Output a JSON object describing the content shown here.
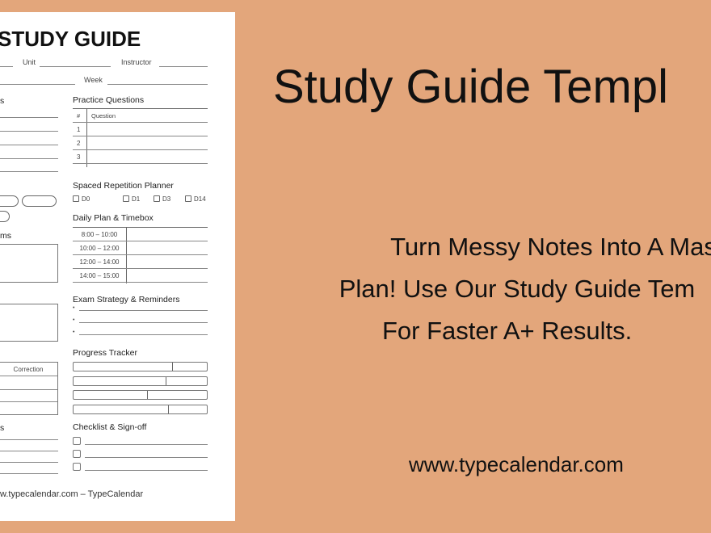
{
  "colors": {
    "background": "#E3A67B",
    "sheet": "#FFFFFF",
    "text": "#111111"
  },
  "sheet": {
    "title": "STUDY GUIDE",
    "unit_label": "Unit",
    "instructor_label": "Instructor",
    "week_label": "Week",
    "left_heading_1": "s",
    "left_heading_2": "ms",
    "correction_header": "Correction",
    "left_heading_3": "s",
    "practice": {
      "title": "Practice Questions",
      "col_num": "#",
      "col_question": "Question",
      "rows": [
        "1",
        "2",
        "3"
      ]
    },
    "spaced": {
      "title": "Spaced Repetition Planner",
      "options": [
        "D0",
        "D1",
        "D3",
        "D14"
      ]
    },
    "daily": {
      "title": "Daily Plan & Timebox",
      "slots": [
        "8:00 – 10:00",
        "10:00 – 12:00",
        "12:00 – 14:00",
        "14:00 – 15:00"
      ]
    },
    "exam": {
      "title": "Exam Strategy & Reminders",
      "bullet": "•"
    },
    "progress": {
      "title": "Progress Tracker",
      "fractions": [
        0.74,
        0.69,
        0.55,
        0.71
      ]
    },
    "checklist": {
      "title": "Checklist & Sign-off"
    },
    "footer": "w.typecalendar.com – TypeCalendar"
  },
  "promo": {
    "title": "Study Guide Templ",
    "tagline": [
      "Turn Messy Notes Into A Mas",
      "Plan! Use Our Study Guide Tem",
      "For Faster A+ Results."
    ],
    "url": "www.typecalendar.com"
  }
}
